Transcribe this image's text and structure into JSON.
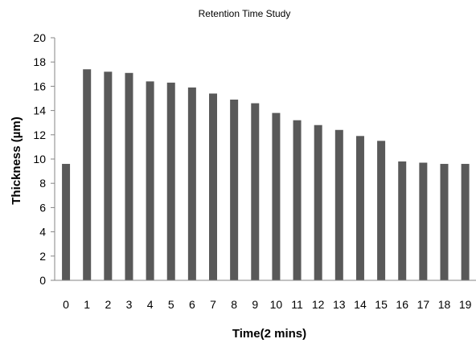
{
  "chart_data": {
    "type": "bar",
    "title": "Retention Time Study",
    "xlabel": "Time(2 mins)",
    "ylabel": "Thickness (µm)",
    "categories": [
      "0",
      "1",
      "2",
      "3",
      "4",
      "5",
      "6",
      "7",
      "8",
      "9",
      "10",
      "11",
      "12",
      "13",
      "14",
      "15",
      "16",
      "17",
      "18",
      "19"
    ],
    "values": [
      9.6,
      17.4,
      17.2,
      17.1,
      16.4,
      16.3,
      15.9,
      15.4,
      14.9,
      14.6,
      13.8,
      13.2,
      12.8,
      12.4,
      11.9,
      11.5,
      9.8,
      9.7,
      9.6,
      9.6
    ],
    "ylim": [
      0,
      20
    ],
    "yticks": [
      0,
      2,
      4,
      6,
      8,
      10,
      12,
      14,
      16,
      18,
      20
    ],
    "bar_color": "#595959",
    "grid": false,
    "legend": "none"
  }
}
